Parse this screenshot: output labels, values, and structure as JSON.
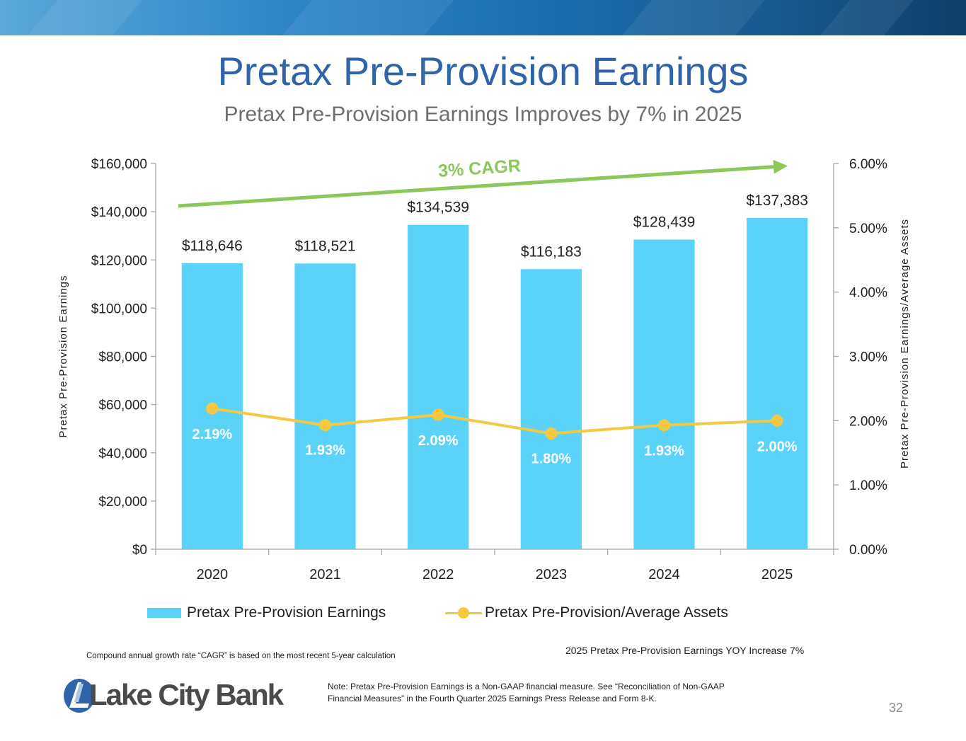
{
  "title": "Pretax Pre-Provision Earnings",
  "subtitle": "Pretax Pre-Provision Earnings Improves by 7% in 2025",
  "cagr_label": "3% CAGR",
  "colors": {
    "bar": "#5bd3f9",
    "line": "#f5c842",
    "cagr": "#8cc75b",
    "title": "#2f64a8"
  },
  "chart_data": {
    "type": "bar",
    "categories": [
      "2020",
      "2021",
      "2022",
      "2023",
      "2024",
      "2025"
    ],
    "series": [
      {
        "name": "Pretax Pre-Provision Earnings",
        "type": "bar",
        "axis": "left",
        "values": [
          118646,
          118521,
          134539,
          116183,
          128439,
          137383
        ],
        "labels": [
          "$118,646",
          "$118,521",
          "$134,539",
          "$116,183",
          "$128,439",
          "$137,383"
        ]
      },
      {
        "name": "Pretax Pre-Provision/Average Assets",
        "type": "line",
        "axis": "right",
        "values": [
          2.19,
          1.93,
          2.09,
          1.8,
          1.93,
          2.0
        ],
        "labels": [
          "2.19%",
          "1.93%",
          "2.09%",
          "1.80%",
          "1.93%",
          "2.00%"
        ]
      }
    ],
    "y_left": {
      "label": "Pretax Pre-Provision Earnings",
      "min": 0,
      "max": 160000,
      "ticks": [
        "$0",
        "$20,000",
        "$40,000",
        "$60,000",
        "$80,000",
        "$100,000",
        "$120,000",
        "$140,000",
        "$160,000"
      ]
    },
    "y_right": {
      "label": "Pretax Pre-Provision Earnings/Average Assets",
      "min": 0,
      "max": 6,
      "ticks": [
        "0.00%",
        "1.00%",
        "2.00%",
        "3.00%",
        "4.00%",
        "5.00%",
        "6.00%"
      ]
    },
    "legend": [
      "Pretax Pre-Provision Earnings",
      "Pretax Pre-Provision/Average Assets"
    ]
  },
  "footnote": "Compound annual growth rate “CAGR” is based on the most recent 5-year calculation",
  "yoy_note": "2025 Pretax Pre-Provision Earnings YOY Increase 7%",
  "note": "Note: Pretax Pre-Provision Earnings is a Non-GAAP financial measure. See “Reconciliation of Non-GAAP Financial Measures” in the Fourth Quarter 2025 Earnings Press Release and Form 8-K.",
  "logo_text": "Lake City Bank",
  "page_number": "32"
}
